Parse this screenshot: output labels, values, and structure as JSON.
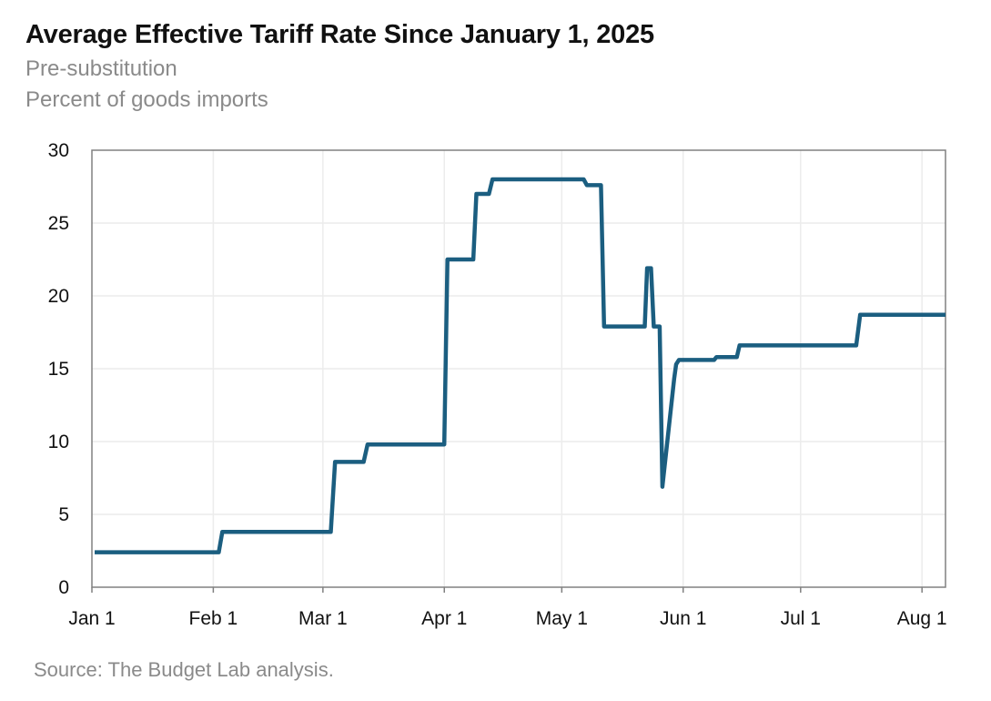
{
  "chart_data": {
    "type": "line",
    "title": "Average Effective Tariff Rate Since January 1, 2025",
    "subtitle": "Pre-substitution",
    "ylabel": "Percent of goods imports",
    "source": "Source: The Budget Lab analysis.",
    "ylim": [
      0,
      30
    ],
    "yticks": [
      {
        "value": 0,
        "label": "0"
      },
      {
        "value": 5,
        "label": "5"
      },
      {
        "value": 10,
        "label": "10"
      },
      {
        "value": 15,
        "label": "15"
      },
      {
        "value": 20,
        "label": "20"
      },
      {
        "value": 25,
        "label": "25"
      },
      {
        "value": 30,
        "label": "30"
      }
    ],
    "xlim": [
      0,
      218
    ],
    "xticks": [
      {
        "day": 0,
        "label": "Jan 1"
      },
      {
        "day": 31,
        "label": "Feb 1"
      },
      {
        "day": 59,
        "label": "Mar 1"
      },
      {
        "day": 90,
        "label": "Apr 1"
      },
      {
        "day": 120,
        "label": "May 1"
      },
      {
        "day": 151,
        "label": "Jun 1"
      },
      {
        "day": 181,
        "label": "Jul 1"
      },
      {
        "day": 212,
        "label": "Aug 1"
      }
    ],
    "grid": true,
    "line_color": "#1b5e80",
    "series": [
      {
        "name": "Average effective tariff rate",
        "x": [
          0.7,
          32.4,
          33.3,
          61.0,
          62.1,
          69.4,
          70.4,
          90.0,
          90.8,
          97.4,
          98.2,
          101.4,
          102.3,
          125.6,
          126.4,
          130.0,
          130.8,
          141.2,
          141.8,
          142.8,
          143.5,
          145.0,
          145.7,
          148.7,
          149.2,
          149.9,
          150.3,
          158.9,
          159.5,
          164.7,
          165.4,
          195.2,
          196.2,
          218.0
        ],
        "y": [
          2.4,
          2.4,
          3.8,
          3.8,
          8.6,
          8.6,
          9.8,
          9.8,
          22.5,
          22.5,
          27.0,
          27.0,
          28.0,
          28.0,
          27.6,
          27.6,
          17.9,
          17.9,
          21.9,
          21.9,
          17.9,
          17.9,
          6.9,
          14.3,
          15.3,
          15.6,
          15.6,
          15.6,
          15.8,
          15.8,
          16.6,
          16.6,
          18.7,
          18.7
        ]
      }
    ]
  }
}
